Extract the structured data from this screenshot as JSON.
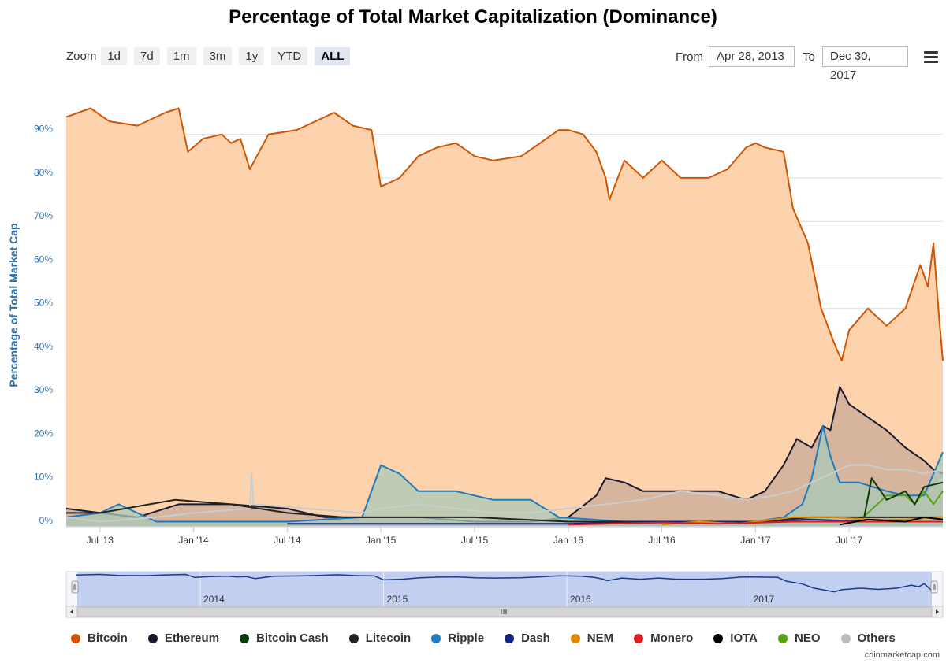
{
  "title": "Percentage of Total Market Capitalization (Dominance)",
  "controls": {
    "zoom_label": "Zoom",
    "zoom_buttons": [
      "1d",
      "7d",
      "1m",
      "3m",
      "1y",
      "YTD",
      "ALL"
    ],
    "active_zoom": "ALL",
    "from_label": "From",
    "from_value": "Apr 28, 2013",
    "to_label": "To",
    "to_value": "Dec 30, 2017"
  },
  "credit": "coinmarketcap.com",
  "chart_data": {
    "type": "area",
    "title": "Percentage of Total Market Capitalization (Dominance)",
    "ylabel": "Percentage of Total Market Cap",
    "xlabel": "",
    "ylim": [
      0,
      100
    ],
    "yticks": [
      "0%",
      "10%",
      "20%",
      "30%",
      "40%",
      "50%",
      "60%",
      "70%",
      "80%",
      "90%"
    ],
    "xticks": [
      {
        "label": "Jul '13",
        "t": 2013.5
      },
      {
        "label": "Jan '14",
        "t": 2014.0
      },
      {
        "label": "Jul '14",
        "t": 2014.5
      },
      {
        "label": "Jan '15",
        "t": 2015.0
      },
      {
        "label": "Jul '15",
        "t": 2015.5
      },
      {
        "label": "Jan '16",
        "t": 2016.0
      },
      {
        "label": "Jul '16",
        "t": 2016.5
      },
      {
        "label": "Jan '17",
        "t": 2017.0
      },
      {
        "label": "Jul '17",
        "t": 2017.5
      }
    ],
    "x_range": [
      2013.32,
      2018.0
    ],
    "navigator_labels": [
      {
        "label": "2014",
        "t": 2014.0
      },
      {
        "label": "2015",
        "t": 2015.0
      },
      {
        "label": "2016",
        "t": 2016.0
      },
      {
        "label": "2017",
        "t": 2017.0
      }
    ],
    "series": [
      {
        "name": "Bitcoin",
        "color": "#d35400",
        "fill": "#fdd3ad",
        "points": [
          [
            2013.32,
            94
          ],
          [
            2013.45,
            96
          ],
          [
            2013.55,
            93
          ],
          [
            2013.7,
            92
          ],
          [
            2013.85,
            95
          ],
          [
            2013.92,
            96
          ],
          [
            2013.97,
            86
          ],
          [
            2014.05,
            89
          ],
          [
            2014.15,
            90
          ],
          [
            2014.2,
            88
          ],
          [
            2014.25,
            89
          ],
          [
            2014.3,
            82
          ],
          [
            2014.4,
            90
          ],
          [
            2014.55,
            91
          ],
          [
            2014.65,
            93
          ],
          [
            2014.75,
            95
          ],
          [
            2014.85,
            92
          ],
          [
            2014.95,
            91
          ],
          [
            2015.0,
            78
          ],
          [
            2015.1,
            80
          ],
          [
            2015.2,
            85
          ],
          [
            2015.3,
            87
          ],
          [
            2015.4,
            88
          ],
          [
            2015.5,
            85
          ],
          [
            2015.6,
            84
          ],
          [
            2015.75,
            85
          ],
          [
            2015.85,
            88
          ],
          [
            2015.95,
            91
          ],
          [
            2016.0,
            91
          ],
          [
            2016.08,
            90
          ],
          [
            2016.15,
            86
          ],
          [
            2016.2,
            80
          ],
          [
            2016.22,
            75
          ],
          [
            2016.3,
            84
          ],
          [
            2016.4,
            80
          ],
          [
            2016.5,
            84
          ],
          [
            2016.6,
            80
          ],
          [
            2016.75,
            80
          ],
          [
            2016.85,
            82
          ],
          [
            2016.95,
            87
          ],
          [
            2017.0,
            88
          ],
          [
            2017.05,
            87
          ],
          [
            2017.15,
            86
          ],
          [
            2017.2,
            73
          ],
          [
            2017.28,
            65
          ],
          [
            2017.35,
            50
          ],
          [
            2017.42,
            42
          ],
          [
            2017.46,
            38
          ],
          [
            2017.5,
            45
          ],
          [
            2017.6,
            50
          ],
          [
            2017.7,
            46
          ],
          [
            2017.8,
            50
          ],
          [
            2017.88,
            60
          ],
          [
            2017.92,
            55
          ],
          [
            2017.95,
            65
          ],
          [
            2017.98,
            48
          ],
          [
            2018.0,
            38
          ]
        ]
      },
      {
        "name": "Ethereum",
        "color": "#1a1a2e",
        "fill": "#c9a99a",
        "points": [
          [
            2013.32,
            4
          ],
          [
            2013.5,
            3
          ],
          [
            2013.7,
            2
          ],
          [
            2013.92,
            5
          ],
          [
            2014.2,
            5
          ],
          [
            2014.5,
            4
          ],
          [
            2014.7,
            2
          ],
          [
            2014.9,
            2
          ],
          [
            2015.2,
            2
          ],
          [
            2015.5,
            1
          ],
          [
            2015.8,
            1
          ],
          [
            2016.0,
            2
          ],
          [
            2016.15,
            7
          ],
          [
            2016.2,
            11
          ],
          [
            2016.3,
            10
          ],
          [
            2016.4,
            8
          ],
          [
            2016.5,
            8
          ],
          [
            2016.6,
            8
          ],
          [
            2016.8,
            8
          ],
          [
            2016.95,
            6
          ],
          [
            2017.05,
            8
          ],
          [
            2017.15,
            14
          ],
          [
            2017.22,
            20
          ],
          [
            2017.3,
            18
          ],
          [
            2017.36,
            23
          ],
          [
            2017.4,
            22
          ],
          [
            2017.45,
            32
          ],
          [
            2017.5,
            28
          ],
          [
            2017.6,
            25
          ],
          [
            2017.7,
            22
          ],
          [
            2017.8,
            18
          ],
          [
            2017.9,
            15
          ],
          [
            2017.95,
            13
          ],
          [
            2018.0,
            12
          ]
        ]
      },
      {
        "name": "Ripple",
        "color": "#1f7bc0",
        "fill": "#a9c9b5",
        "points": [
          [
            2013.32,
            2
          ],
          [
            2013.5,
            3
          ],
          [
            2013.6,
            5
          ],
          [
            2013.8,
            1
          ],
          [
            2014.0,
            1
          ],
          [
            2014.5,
            1
          ],
          [
            2014.9,
            2
          ],
          [
            2015.0,
            14
          ],
          [
            2015.1,
            12
          ],
          [
            2015.2,
            8
          ],
          [
            2015.4,
            8
          ],
          [
            2015.5,
            7
          ],
          [
            2015.6,
            6
          ],
          [
            2015.8,
            6
          ],
          [
            2015.95,
            2
          ],
          [
            2016.3,
            1
          ],
          [
            2016.6,
            1
          ],
          [
            2017.0,
            1
          ],
          [
            2017.15,
            2
          ],
          [
            2017.25,
            5
          ],
          [
            2017.3,
            11
          ],
          [
            2017.36,
            23
          ],
          [
            2017.4,
            16
          ],
          [
            2017.45,
            10
          ],
          [
            2017.55,
            10
          ],
          [
            2017.7,
            8
          ],
          [
            2017.8,
            7
          ],
          [
            2017.9,
            7
          ],
          [
            2018.0,
            17
          ]
        ]
      },
      {
        "name": "Others",
        "color": "#cccccc",
        "fill": "none",
        "points": [
          [
            2013.32,
            2
          ],
          [
            2013.5,
            1
          ],
          [
            2013.8,
            2
          ],
          [
            2014.0,
            3
          ],
          [
            2014.3,
            4
          ],
          [
            2014.31,
            12
          ],
          [
            2014.32,
            5
          ],
          [
            2014.6,
            4
          ],
          [
            2014.9,
            3
          ],
          [
            2015.0,
            4
          ],
          [
            2015.2,
            5
          ],
          [
            2015.4,
            4
          ],
          [
            2015.6,
            3
          ],
          [
            2015.8,
            3
          ],
          [
            2016.0,
            4
          ],
          [
            2016.2,
            5
          ],
          [
            2016.4,
            6
          ],
          [
            2016.6,
            8
          ],
          [
            2016.8,
            7
          ],
          [
            2016.95,
            6
          ],
          [
            2017.1,
            7
          ],
          [
            2017.2,
            8
          ],
          [
            2017.3,
            10
          ],
          [
            2017.4,
            12
          ],
          [
            2017.5,
            14
          ],
          [
            2017.6,
            14
          ],
          [
            2017.7,
            13
          ],
          [
            2017.8,
            13
          ],
          [
            2017.9,
            12
          ],
          [
            2018.0,
            13
          ]
        ]
      },
      {
        "name": "NEO",
        "color": "#58a312",
        "fill": "none",
        "points": [
          [
            2017.55,
            1
          ],
          [
            2017.6,
            3
          ],
          [
            2017.7,
            7
          ],
          [
            2017.8,
            7
          ],
          [
            2017.85,
            5
          ],
          [
            2017.9,
            8
          ],
          [
            2017.95,
            5
          ],
          [
            2018.0,
            8
          ]
        ]
      },
      {
        "name": "Bitcoin Cash",
        "color": "#0a3d0a",
        "fill": "none",
        "points": [
          [
            2017.58,
            2
          ],
          [
            2017.62,
            11
          ],
          [
            2017.7,
            6
          ],
          [
            2017.8,
            8
          ],
          [
            2017.85,
            5
          ],
          [
            2017.9,
            9
          ],
          [
            2018.0,
            10
          ]
        ]
      },
      {
        "name": "Litecoin",
        "color": "#222222",
        "fill": "none",
        "points": [
          [
            2013.32,
            3
          ],
          [
            2013.5,
            3
          ],
          [
            2013.9,
            6
          ],
          [
            2014.2,
            5
          ],
          [
            2014.5,
            3
          ],
          [
            2014.8,
            2
          ],
          [
            2015.0,
            2
          ],
          [
            2015.5,
            2
          ],
          [
            2016.0,
            1
          ],
          [
            2016.5,
            1
          ],
          [
            2017.0,
            1
          ],
          [
            2017.3,
            2
          ],
          [
            2017.5,
            2
          ],
          [
            2017.8,
            2
          ],
          [
            2018.0,
            2
          ]
        ]
      },
      {
        "name": "Dash",
        "color": "#14267a",
        "fill": "none",
        "points": [
          [
            2014.5,
            0.5
          ],
          [
            2015.0,
            0.5
          ],
          [
            2015.5,
            0.5
          ],
          [
            2016.0,
            0.5
          ],
          [
            2016.5,
            1
          ],
          [
            2017.0,
            1
          ],
          [
            2017.3,
            1.5
          ],
          [
            2017.6,
            1
          ],
          [
            2018.0,
            1
          ]
        ]
      },
      {
        "name": "NEM",
        "color": "#e08a00",
        "fill": "none",
        "points": [
          [
            2016.5,
            0.3
          ],
          [
            2016.7,
            1
          ],
          [
            2016.9,
            0.5
          ],
          [
            2017.2,
            2
          ],
          [
            2017.4,
            2
          ],
          [
            2017.6,
            1.5
          ],
          [
            2017.8,
            1.5
          ],
          [
            2018.0,
            2
          ]
        ]
      },
      {
        "name": "Monero",
        "color": "#e21b1b",
        "fill": "none",
        "points": [
          [
            2016.0,
            0.3
          ],
          [
            2016.5,
            0.8
          ],
          [
            2016.8,
            0.5
          ],
          [
            2017.2,
            1
          ],
          [
            2017.5,
            1
          ],
          [
            2017.8,
            1
          ],
          [
            2018.0,
            1
          ]
        ]
      },
      {
        "name": "IOTA",
        "color": "#000000",
        "fill": "none",
        "points": [
          [
            2017.45,
            0.3
          ],
          [
            2017.6,
            1.5
          ],
          [
            2017.8,
            1
          ],
          [
            2017.9,
            2
          ],
          [
            2018.0,
            1.5
          ]
        ]
      }
    ],
    "legend": [
      {
        "name": "Bitcoin",
        "color": "#d35400"
      },
      {
        "name": "Ethereum",
        "color": "#1a1a2e"
      },
      {
        "name": "Bitcoin Cash",
        "color": "#0a3d0a"
      },
      {
        "name": "Litecoin",
        "color": "#222222"
      },
      {
        "name": "Ripple",
        "color": "#1f7bc0"
      },
      {
        "name": "Dash",
        "color": "#14267a"
      },
      {
        "name": "NEM",
        "color": "#e08a00"
      },
      {
        "name": "Monero",
        "color": "#e21b1b"
      },
      {
        "name": "IOTA",
        "color": "#000000"
      },
      {
        "name": "NEO",
        "color": "#58a312"
      },
      {
        "name": "Others",
        "color": "#bbbbbb"
      }
    ]
  }
}
